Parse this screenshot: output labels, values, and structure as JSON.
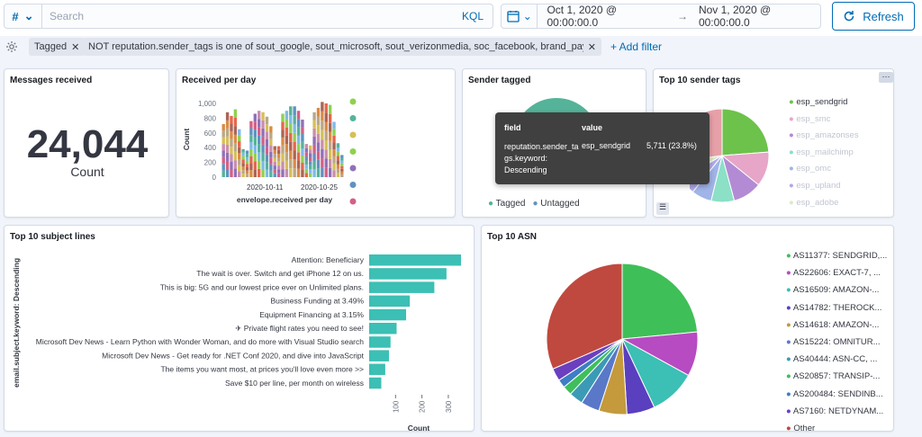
{
  "query": {
    "language_btn": "#",
    "search_placeholder": "Search",
    "kql": "KQL"
  },
  "time": {
    "from": "Oct 1, 2020 @ 00:00:00.0",
    "arrow": "→",
    "to": "Nov 1, 2020 @ 00:00:00.0",
    "refresh": "Refresh"
  },
  "filters": [
    {
      "label": "Tagged"
    },
    {
      "label": "NOT reputation.sender_tags is one of sout_google, sout_microsoft, sout_verizonmedia, soc_facebook, brand_paypal, isp_ovh"
    }
  ],
  "add_filter": "+ Add filter",
  "panels": {
    "messages": {
      "title": "Messages received",
      "value": "24,044",
      "label": "Count"
    },
    "per_day": {
      "title": "Received per day",
      "ylabel": "Count",
      "xlabel": "envelope.received per day"
    },
    "sender_tagged": {
      "title": "Sender tagged",
      "legend": [
        "Tagged",
        "Untagged"
      ]
    },
    "top_tags": {
      "title": "Top 10 sender tags",
      "legend": [
        "esp_sendgrid",
        "esp_smc",
        "esp_amazonses",
        "esp_mailchimp",
        "esp_omc",
        "esp_upland",
        "esp_adobe"
      ]
    },
    "subjects": {
      "title": "Top 10 subject lines",
      "ylabel": "email.subject.keyword: Descending",
      "xlabel": "Count"
    },
    "asn": {
      "title": "Top 10 ASN"
    }
  },
  "tooltip": {
    "h_field": "field",
    "h_value": "value",
    "field_l1": "reputation.sender_ta",
    "field_l2": "gs.keyword:",
    "field_l3": "Descending",
    "value": "esp_sendgrid",
    "count": "5,711 (23.8%)"
  },
  "chart_data": [
    {
      "type": "bar",
      "title": "Received per day",
      "ylabel": "Count",
      "xlabel": "envelope.received per day",
      "ylim": [
        0,
        1000
      ],
      "yticks": [
        "0",
        "200",
        "400",
        "600",
        "800",
        "1,000"
      ],
      "xticks": [
        "2020-10-11",
        "2020-10-25"
      ],
      "values": [
        720,
        880,
        830,
        920,
        650,
        380,
        360,
        760,
        860,
        900,
        880,
        820,
        690,
        420,
        420,
        860,
        900,
        960,
        960,
        900,
        780,
        450,
        430,
        880,
        940,
        1020,
        1000,
        980,
        750,
        460,
        300
      ]
    },
    {
      "type": "pie",
      "title": "Sender tagged",
      "labels": [
        "Tagged",
        "Untagged"
      ],
      "colors": [
        "#54b399",
        "#6092c0"
      ]
    },
    {
      "type": "pie",
      "title": "Top 10 sender tags",
      "labels": [
        "esp_sendgrid",
        "esp_smc",
        "esp_amazonses",
        "esp_mailchimp",
        "esp_omc",
        "esp_upland",
        "esp_adobe"
      ],
      "highlight": {
        "label": "esp_sendgrid",
        "value": 5711,
        "pct": 23.8
      },
      "colors": [
        "#6dc24b",
        "#e7a5c8",
        "#b38bd4",
        "#8be0c6",
        "#a0b4e8",
        "#b1a8e8",
        "#d8ecc4",
        "#e6a0a8"
      ]
    },
    {
      "type": "bar",
      "orientation": "horizontal",
      "title": "Top 10 subject lines",
      "ylabel": "email.subject.keyword: Descending",
      "xlabel": "Count",
      "xticks": [
        "100",
        "200",
        "300"
      ],
      "xlim": [
        0,
        400
      ],
      "categories": [
        "Attention: Beneficiary",
        "The wait is over. Switch and get iPhone 12 on us.",
        "This is big: 5G and our lowest price ever on Unlimited plans.",
        "Business Funding at 3.49%",
        "Equipment Financing at 3.15%",
        "✈ Private flight rates you need to see!",
        "Microsoft Dev News - Learn Python with Wonder Woman, and do more with Visual Studio search",
        "Microsoft Dev News - Get ready for .NET Conf 2020, and dive into JavaScript",
        "The items you want most, at prices you'll love even more >>",
        "Save $10 per line, per month on wireless"
      ],
      "values": [
        348,
        293,
        247,
        154,
        140,
        104,
        81,
        75,
        61,
        46
      ]
    },
    {
      "type": "pie",
      "title": "Top 10 ASN",
      "labels": [
        "AS11377: SENDGRID,...",
        "AS22606: EXACT-7, ...",
        "AS16509: AMAZON-...",
        "AS14782: THEROCK...",
        "AS14618: AMAZON-...",
        "AS15224: OMNITUR...",
        "AS40444: ASN-CC, ...",
        "AS20857: TRANSIP-...",
        "AS200484: SENDINB...",
        "AS7160: NETDYNAM...",
        "Other"
      ],
      "values": [
        23.5,
        9.5,
        10,
        6,
        6,
        4,
        3,
        2,
        1.8,
        2.7,
        31.5
      ],
      "colors": [
        "#3fbf58",
        "#b74bc1",
        "#3cbfb4",
        "#5a3fbf",
        "#c49a3c",
        "#5a78c8",
        "#3b9ab5",
        "#3ebf5b",
        "#3d7ec4",
        "#6b3fbf",
        "#c0493f"
      ]
    }
  ]
}
